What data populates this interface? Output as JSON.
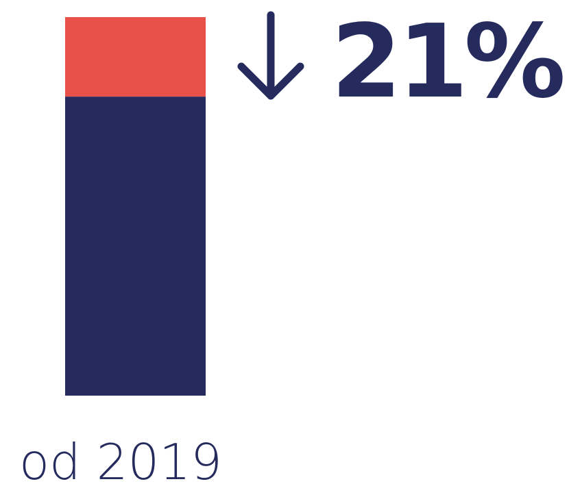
{
  "chart_data": {
    "type": "stacked-bar",
    "categories": [
      "od 2019"
    ],
    "series": [
      {
        "color": "#262b5e",
        "values": [
          79
        ]
      },
      {
        "color": "#e8504a",
        "values": [
          21
        ],
        "value_labels": [
          "21%"
        ]
      }
    ]
  }
}
